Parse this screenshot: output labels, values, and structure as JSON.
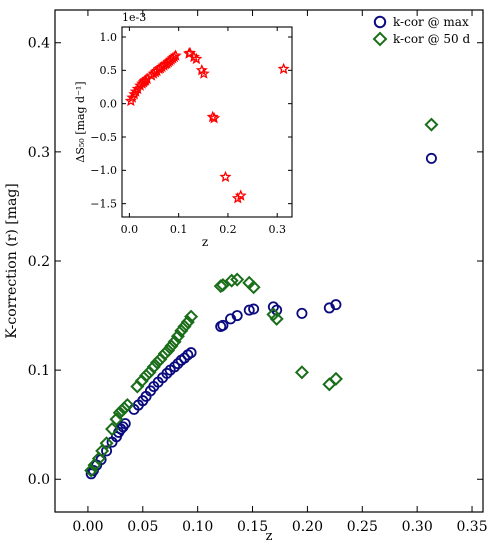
{
  "chart_data": [
    {
      "type": "scatter",
      "xlabel": "z",
      "ylabel": "K-correction (r) [mag]",
      "xlim": [
        -0.03,
        0.36
      ],
      "ylim": [
        -0.03,
        0.43
      ],
      "xticks": [
        "0.00",
        "0.05",
        "0.10",
        "0.15",
        "0.20",
        "0.25",
        "0.30",
        "0.35"
      ],
      "xtick_values": [
        0,
        0.05,
        0.1,
        0.15,
        0.2,
        0.25,
        0.3,
        0.35
      ],
      "yticks": [
        "0.0",
        "0.1",
        "0.2",
        "0.3",
        "0.4"
      ],
      "ytick_values": [
        0,
        0.1,
        0.2,
        0.3,
        0.4
      ],
      "legend_position": "top-right",
      "grid": false,
      "series": [
        {
          "name": "k-cor @ max",
          "marker": "circle",
          "color": "#0a0a7f",
          "x": [
            0.003,
            0.005,
            0.008,
            0.012,
            0.017,
            0.022,
            0.026,
            0.028,
            0.03,
            0.032,
            0.034,
            0.042,
            0.046,
            0.05,
            0.053,
            0.057,
            0.06,
            0.064,
            0.068,
            0.072,
            0.075,
            0.079,
            0.082,
            0.085,
            0.088,
            0.091,
            0.094,
            0.121,
            0.123,
            0.13,
            0.136,
            0.147,
            0.151,
            0.169,
            0.172,
            0.195,
            0.22,
            0.226,
            0.313
          ],
          "y": [
            0.005,
            0.008,
            0.013,
            0.018,
            0.026,
            0.034,
            0.039,
            0.043,
            0.046,
            0.048,
            0.051,
            0.064,
            0.068,
            0.072,
            0.076,
            0.081,
            0.085,
            0.089,
            0.093,
            0.097,
            0.1,
            0.103,
            0.106,
            0.109,
            0.111,
            0.114,
            0.116,
            0.14,
            0.141,
            0.147,
            0.15,
            0.155,
            0.156,
            0.158,
            0.155,
            0.152,
            0.157,
            0.16,
            0.294
          ]
        },
        {
          "name": "k-cor @ 50 d",
          "marker": "diamond",
          "color": "#1a6e1a",
          "x": [
            0.003,
            0.006,
            0.01,
            0.013,
            0.017,
            0.022,
            0.026,
            0.029,
            0.031,
            0.033,
            0.036,
            0.045,
            0.049,
            0.053,
            0.056,
            0.06,
            0.063,
            0.066,
            0.07,
            0.073,
            0.076,
            0.079,
            0.082,
            0.085,
            0.088,
            0.091,
            0.094,
            0.121,
            0.123,
            0.131,
            0.136,
            0.147,
            0.151,
            0.169,
            0.172,
            0.195,
            0.22,
            0.226,
            0.313
          ],
          "y": [
            0.008,
            0.013,
            0.019,
            0.026,
            0.033,
            0.046,
            0.055,
            0.061,
            0.063,
            0.065,
            0.068,
            0.085,
            0.09,
            0.095,
            0.098,
            0.103,
            0.107,
            0.11,
            0.115,
            0.118,
            0.122,
            0.126,
            0.131,
            0.136,
            0.14,
            0.144,
            0.149,
            0.177,
            0.178,
            0.182,
            0.183,
            0.18,
            0.176,
            0.151,
            0.147,
            0.098,
            0.087,
            0.092,
            0.325
          ]
        }
      ]
    },
    {
      "type": "scatter",
      "xlabel": "z",
      "ylabel": "ΔS₅₀ [mag d⁻¹]",
      "offset_label": "1e-3",
      "xlim": [
        -0.015,
        0.33
      ],
      "ylim": [
        -1.7,
        1.15
      ],
      "xticks": [
        "0.0",
        "0.1",
        "0.2",
        "0.3"
      ],
      "xtick_values": [
        0,
        0.1,
        0.2,
        0.3
      ],
      "yticks": [
        "1.0",
        "0.5",
        "0.0",
        "−0.5",
        "−1.0",
        "−1.5"
      ],
      "ytick_values": [
        1.0,
        0.5,
        0.0,
        -0.5,
        -1.0,
        -1.5
      ],
      "series": [
        {
          "marker": "star",
          "color": "#ff0000",
          "x": [
            0.003,
            0.006,
            0.01,
            0.013,
            0.017,
            0.022,
            0.026,
            0.029,
            0.031,
            0.033,
            0.036,
            0.045,
            0.049,
            0.053,
            0.056,
            0.06,
            0.063,
            0.066,
            0.07,
            0.073,
            0.076,
            0.079,
            0.082,
            0.085,
            0.088,
            0.091,
            0.094,
            0.121,
            0.123,
            0.131,
            0.136,
            0.147,
            0.151,
            0.169,
            0.172,
            0.195,
            0.22,
            0.226,
            0.313
          ],
          "y": [
            0.04,
            0.09,
            0.14,
            0.18,
            0.22,
            0.27,
            0.3,
            0.32,
            0.34,
            0.35,
            0.37,
            0.42,
            0.45,
            0.47,
            0.49,
            0.52,
            0.53,
            0.55,
            0.57,
            0.59,
            0.6,
            0.62,
            0.64,
            0.66,
            0.68,
            0.7,
            0.72,
            0.75,
            0.76,
            0.7,
            0.67,
            0.5,
            0.45,
            -0.2,
            -0.22,
            -1.1,
            -1.42,
            -1.38,
            0.52
          ]
        }
      ]
    }
  ]
}
